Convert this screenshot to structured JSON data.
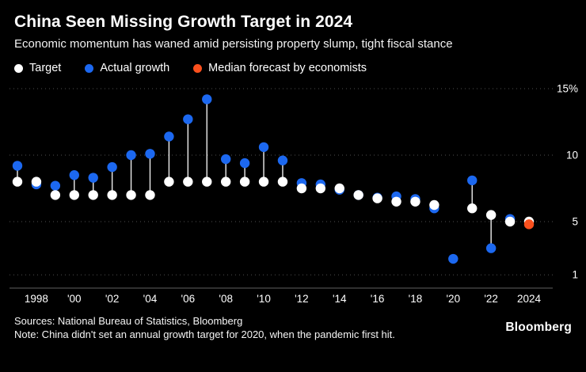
{
  "header": {
    "title": "China Seen Missing Growth Target in 2024",
    "subtitle": "Economic momentum has waned amid persisting property slump, tight fiscal stance"
  },
  "legend": {
    "items": [
      {
        "key": "target",
        "label": "Target",
        "color": "white"
      },
      {
        "key": "actual",
        "label": "Actual growth",
        "color": "blue"
      },
      {
        "key": "forecast",
        "label": "Median forecast by economists",
        "color": "orange"
      }
    ]
  },
  "colors": {
    "background": "#000000",
    "text": "#ffffff",
    "white": "#ffffff",
    "blue": "#1c68f0",
    "orange": "#fb501d",
    "grid": "#4f4f4f",
    "axis": "#5f5f5f",
    "connector": "#eeeeee"
  },
  "chart_data": {
    "type": "scatter",
    "title": "China Seen Missing Growth Target in 2024",
    "subtitle": "Economic momentum has waned amid persisting property slump, tight fiscal stance",
    "x": [
      1997,
      1998,
      1999,
      2000,
      2001,
      2002,
      2003,
      2004,
      2005,
      2006,
      2007,
      2008,
      2009,
      2010,
      2011,
      2012,
      2013,
      2014,
      2015,
      2016,
      2017,
      2018,
      2019,
      2020,
      2021,
      2022,
      2023,
      2024
    ],
    "series": [
      {
        "name": "Target",
        "color": "white",
        "values": [
          8,
          8,
          7,
          7,
          7,
          7,
          7,
          7,
          8,
          8,
          8,
          8,
          8,
          8,
          8,
          7.5,
          7.5,
          7.5,
          7,
          6.75,
          6.5,
          6.5,
          6.25,
          null,
          6,
          5.5,
          5,
          5
        ]
      },
      {
        "name": "Actual growth",
        "color": "blue",
        "values": [
          9.2,
          7.8,
          7.7,
          8.5,
          8.3,
          9.1,
          10,
          10.1,
          11.4,
          12.7,
          14.2,
          9.7,
          9.4,
          10.6,
          9.6,
          7.9,
          7.8,
          7.4,
          7,
          6.8,
          6.9,
          6.7,
          6,
          2.2,
          8.1,
          3,
          5.2,
          null
        ]
      },
      {
        "name": "Median forecast by economists",
        "color": "orange",
        "values": [
          null,
          null,
          null,
          null,
          null,
          null,
          null,
          null,
          null,
          null,
          null,
          null,
          null,
          null,
          null,
          null,
          null,
          null,
          null,
          null,
          null,
          null,
          null,
          null,
          null,
          null,
          null,
          4.8
        ]
      }
    ],
    "ylim": [
      0,
      15
    ],
    "yticks": [
      {
        "value": 1,
        "label": "1"
      },
      {
        "value": 5,
        "label": "5"
      },
      {
        "value": 10,
        "label": "10"
      },
      {
        "value": 15,
        "label": "15%"
      }
    ],
    "xticks": [
      {
        "year": 1998,
        "label": "1998"
      },
      {
        "year": 2000,
        "label": "'00"
      },
      {
        "year": 2002,
        "label": "'02"
      },
      {
        "year": 2004,
        "label": "'04"
      },
      {
        "year": 2006,
        "label": "'06"
      },
      {
        "year": 2008,
        "label": "'08"
      },
      {
        "year": 2010,
        "label": "'10"
      },
      {
        "year": 2012,
        "label": "'12"
      },
      {
        "year": 2014,
        "label": "'14"
      },
      {
        "year": 2016,
        "label": "'16"
      },
      {
        "year": 2018,
        "label": "'18"
      },
      {
        "year": 2020,
        "label": "'20"
      },
      {
        "year": 2022,
        "label": "'22"
      },
      {
        "year": 2024,
        "label": "2024"
      }
    ],
    "grid": "horizontal-dotted",
    "legend_position": "top-left"
  },
  "footer": {
    "sources": "Sources: National Bureau of Statistics, Bloomberg",
    "note": "Note: China didn't set an annual growth target for 2020, when the pandemic first hit.",
    "logo": "Bloomberg"
  }
}
